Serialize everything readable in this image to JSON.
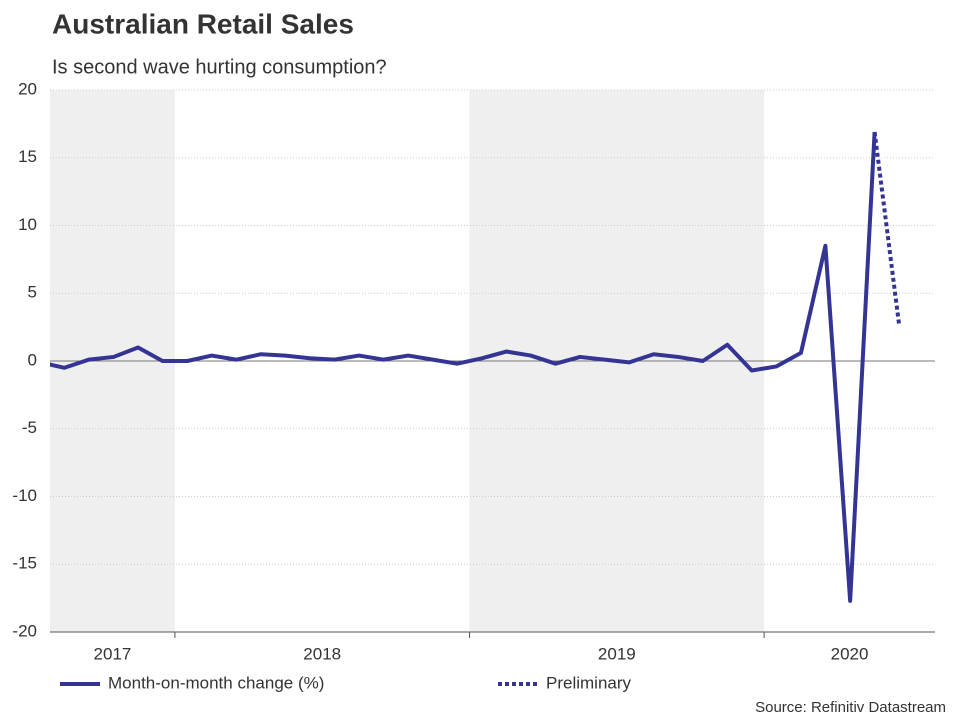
{
  "chart_data": {
    "type": "line",
    "title": "Australian Retail Sales",
    "subtitle": "Is second wave hurting consumption?",
    "source": "Source: Refinitiv Datastream",
    "series": [
      {
        "name": "Month-on-month change (%)",
        "color": "#343494",
        "style": "solid",
        "x": [
          2017.542,
          2017.625,
          2017.708,
          2017.792,
          2017.875,
          2017.958,
          2018.042,
          2018.125,
          2018.208,
          2018.292,
          2018.375,
          2018.458,
          2018.542,
          2018.625,
          2018.708,
          2018.792,
          2018.875,
          2018.958,
          2019.042,
          2019.125,
          2019.208,
          2019.292,
          2019.375,
          2019.458,
          2019.542,
          2019.625,
          2019.708,
          2019.792,
          2019.875,
          2019.958,
          2020.042,
          2020.125,
          2020.208,
          2020.292,
          2020.375
        ],
        "values": [
          -0.1,
          -0.5,
          0.1,
          0.3,
          1.0,
          0.0,
          0.0,
          0.4,
          0.1,
          0.5,
          0.4,
          0.2,
          0.1,
          0.4,
          0.1,
          0.4,
          0.1,
          -0.2,
          0.2,
          0.7,
          0.4,
          -0.2,
          0.3,
          0.1,
          -0.1,
          0.5,
          0.3,
          0.0,
          1.2,
          -0.7,
          -0.4,
          0.6,
          8.5,
          -17.7,
          16.9
        ]
      },
      {
        "name": "Preliminary",
        "color": "#343494",
        "style": "dotted",
        "x": [
          2020.375,
          2020.458
        ],
        "values": [
          16.9,
          2.7
        ]
      }
    ],
    "xlim": [
      2017.576,
      2020.58
    ],
    "xticks": [
      2018,
      2019,
      2020
    ],
    "year_labels": [
      2017,
      2018,
      2019,
      2020
    ],
    "shaded_years": [
      2017,
      2019
    ],
    "ylim": [
      -20,
      20
    ],
    "yticks": [
      -20,
      -15,
      -10,
      -5,
      0,
      5,
      10,
      15,
      20
    ],
    "grid": true
  }
}
